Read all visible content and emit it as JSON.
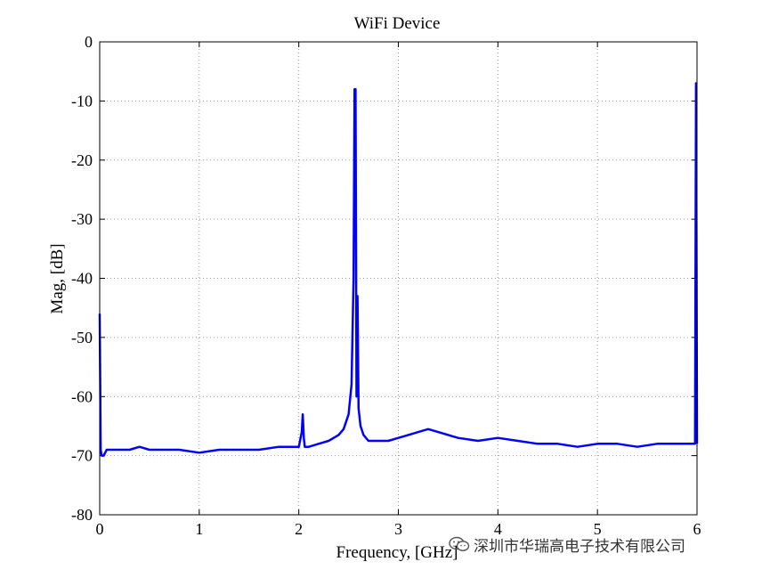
{
  "chart_data": {
    "type": "line",
    "title": "WiFi Device",
    "xlabel": "Frequency, [GHz]",
    "ylabel": "Mag, [dB]",
    "xlim": [
      0,
      6
    ],
    "ylim": [
      -80,
      0
    ],
    "xticks": [
      0,
      1,
      2,
      3,
      4,
      5,
      6
    ],
    "yticks": [
      0,
      -10,
      -20,
      -30,
      -40,
      -50,
      -60,
      -70,
      -80
    ],
    "grid": true,
    "line_color": "#0000ff",
    "series": [
      {
        "x": [
          0.0,
          0.005,
          0.01,
          0.02,
          0.04,
          0.07,
          0.1,
          0.2,
          0.3,
          0.4,
          0.5,
          0.6,
          0.8,
          1.0,
          1.2,
          1.4,
          1.6,
          1.8,
          2.0,
          2.03,
          2.04,
          2.05,
          2.06,
          2.1,
          2.2,
          2.3,
          2.4,
          2.45,
          2.5,
          2.53,
          2.55,
          2.56,
          2.57,
          2.58,
          2.59,
          2.6,
          2.62,
          2.65,
          2.7,
          2.8,
          2.9,
          3.0,
          3.1,
          3.2,
          3.3,
          3.4,
          3.6,
          3.8,
          4.0,
          4.2,
          4.4,
          4.6,
          4.8,
          5.0,
          5.2,
          5.4,
          5.6,
          5.8,
          5.9,
          5.98,
          5.99,
          6.0
        ],
        "y": [
          -46,
          -58,
          -69,
          -70,
          -70,
          -69,
          -69,
          -69,
          -69,
          -68.5,
          -69,
          -69,
          -69,
          -69.5,
          -69,
          -69,
          -69,
          -68.5,
          -68.5,
          -66,
          -63,
          -67,
          -68.5,
          -68.5,
          -68,
          -67.5,
          -66.5,
          -65.5,
          -63,
          -58,
          -40,
          -8,
          -8,
          -60,
          -43,
          -62,
          -65,
          -66.5,
          -67.5,
          -67.5,
          -67.5,
          -67,
          -66.5,
          -66,
          -65.5,
          -66,
          -67,
          -67.5,
          -67,
          -67.5,
          -68,
          -68,
          -68.5,
          -68,
          -68,
          -68.5,
          -68,
          -68,
          -68,
          -68,
          -7,
          -68
        ]
      }
    ]
  },
  "watermark": {
    "text": "深圳市华瑞高电子技术有限公司",
    "icon": "wechat-icon"
  }
}
